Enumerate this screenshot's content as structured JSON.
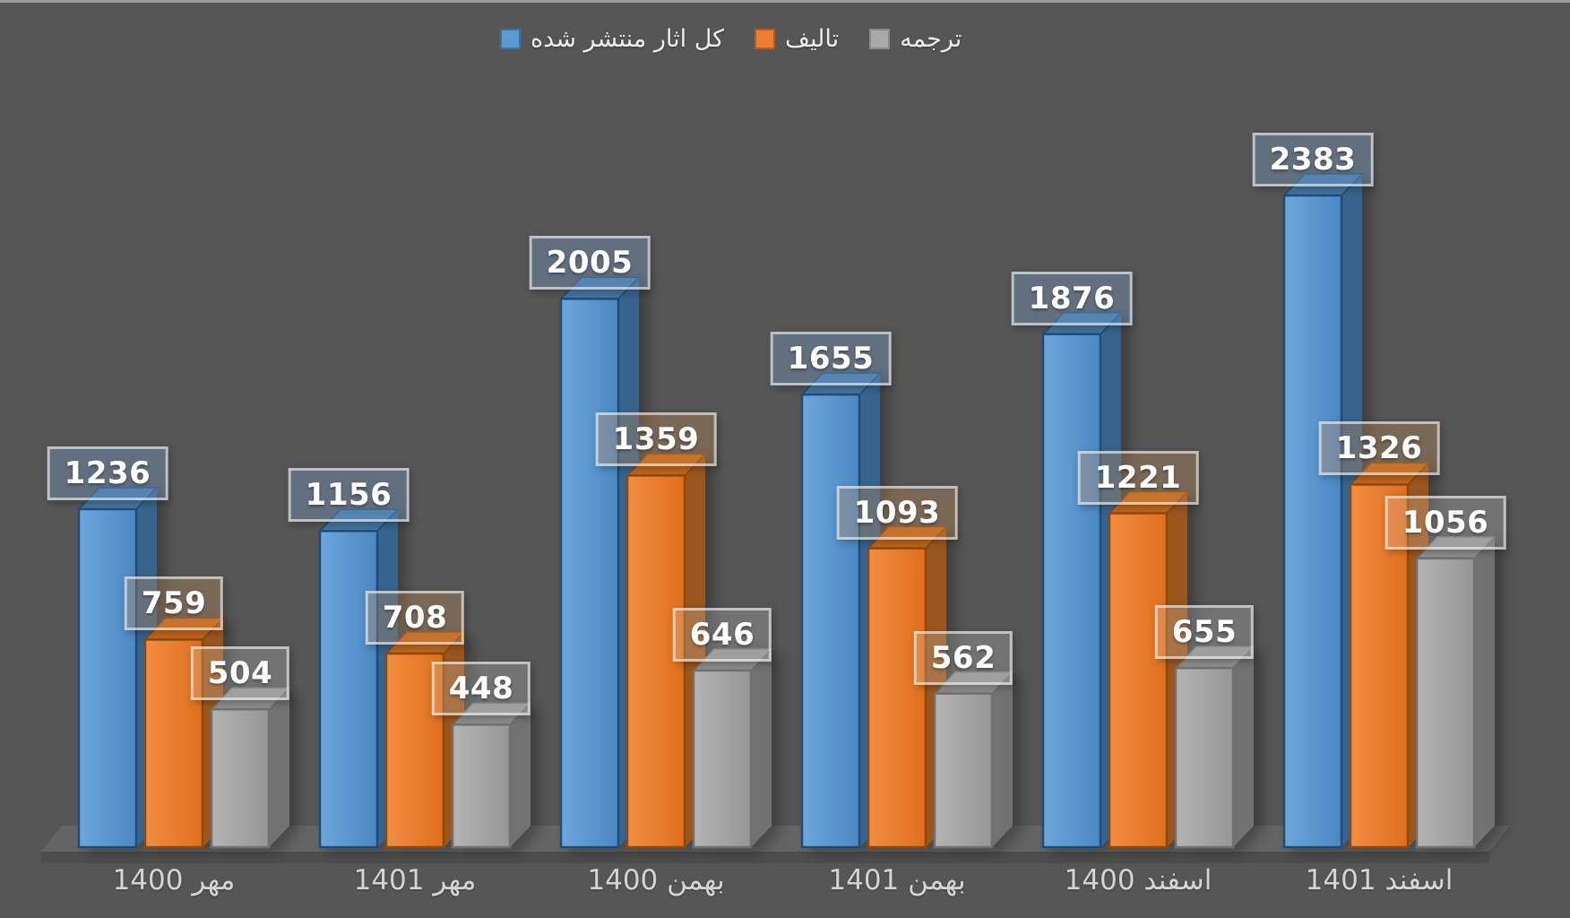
{
  "page": {
    "background_color": "#565656",
    "top_edge_color": "#9b9b9b"
  },
  "legend": {
    "position": "top",
    "items": [
      {
        "key": "total",
        "label": "کل اثار منتشر شده"
      },
      {
        "key": "authored",
        "label": "تالیف"
      },
      {
        "key": "translation",
        "label": "ترجمه"
      }
    ]
  },
  "chart_data": {
    "type": "bar",
    "style": "3d-clustered",
    "title": "",
    "xlabel": "",
    "ylabel": "",
    "ylim": [
      0,
      2600
    ],
    "gridlines": false,
    "y_axis_visible": false,
    "data_labels": true,
    "legend_position": "top",
    "categories": [
      "مهر 1400",
      "مهر 1401",
      "بهمن 1400",
      "بهمن 1401",
      "اسفند 1400",
      "اسفند 1401"
    ],
    "series": [
      {
        "key": "total",
        "name": "کل اثار منتشر شده",
        "values": [
          1236,
          1156,
          2005,
          1655,
          1876,
          2383
        ],
        "palette": {
          "swatch": "#5b9bd5",
          "swatch_border": "#41719c",
          "front1": "#6ca6dd",
          "front2": "#4c88c2",
          "top": "#44749f",
          "side": "#36648f",
          "stroke": "#1f4e79",
          "label_bg": "rgba(125,166,210,0.32)"
        }
      },
      {
        "key": "authored",
        "name": "تالیف",
        "values": [
          759,
          708,
          1359,
          1093,
          1221,
          1326
        ],
        "palette": {
          "swatch": "#ed7d31",
          "swatch_border": "#b15e1f",
          "front1": "#f18d43",
          "front2": "#e06f1d",
          "top": "#c2661c",
          "side": "#9e571d",
          "stroke": "#8a4a10",
          "label_bg": "rgba(205,145,90,0.30)"
        }
      },
      {
        "key": "translation",
        "name": "ترجمه",
        "values": [
          504,
          448,
          646,
          562,
          655,
          1056
        ],
        "palette": {
          "swatch": "#a9a9a9",
          "swatch_border": "#8a8a8a",
          "front1": "#b4b4b4",
          "front2": "#969696",
          "top": "#8f8f8f",
          "side": "#747474",
          "stroke": "#6f6f6f",
          "label_bg": "rgba(220,220,220,0.22)"
        }
      }
    ],
    "floor": {
      "surface_color": "#646464",
      "skirt_color": "#4d4d4d"
    }
  }
}
